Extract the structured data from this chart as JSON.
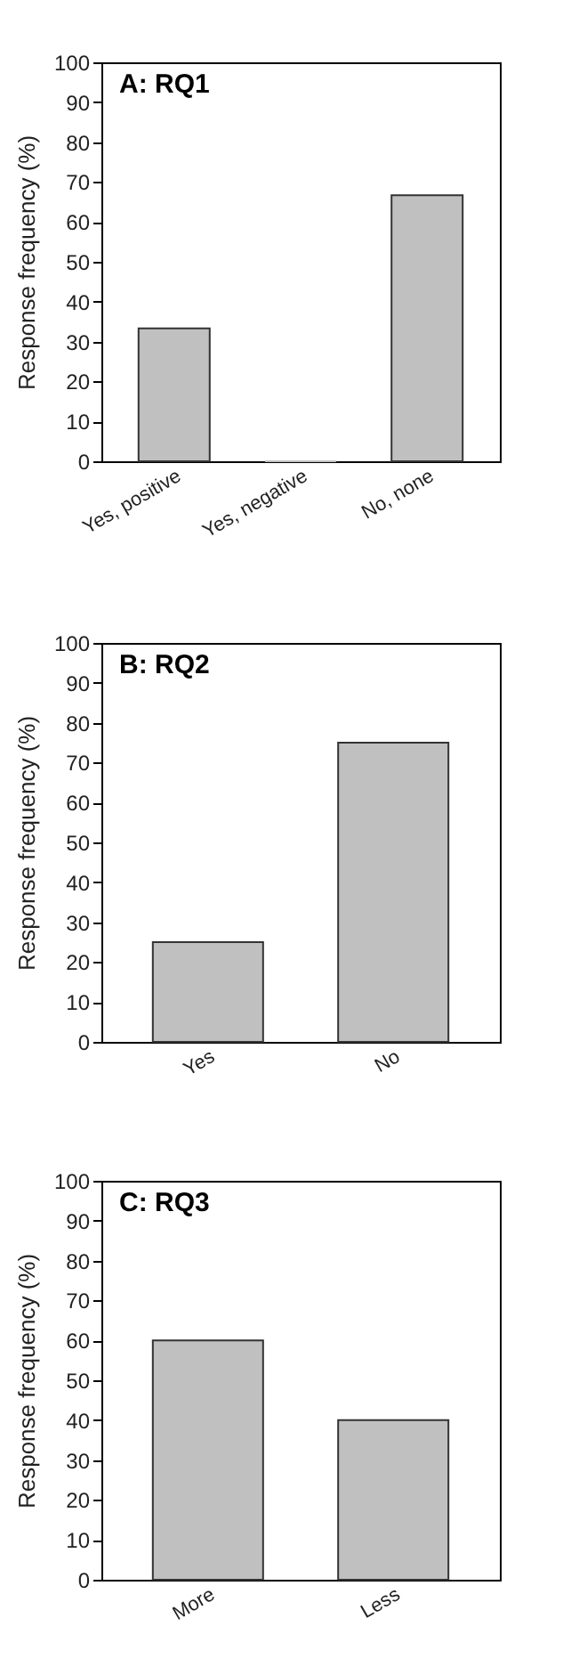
{
  "chart_data": [
    {
      "type": "bar",
      "title": "A: RQ1",
      "ylabel": "Response frequency (%)",
      "categories": [
        "Yes, positive",
        "Yes, negative",
        "No, none"
      ],
      "values": [
        33.3,
        0,
        66.7
      ],
      "color": "#c0c0c0",
      "ylim": [
        0,
        100
      ],
      "yticks": [
        0,
        10,
        20,
        30,
        40,
        50,
        60,
        70,
        80,
        90,
        100
      ]
    },
    {
      "type": "bar",
      "title": "B: RQ2",
      "ylabel": "Response frequency (%)",
      "categories": [
        "Yes",
        "No"
      ],
      "values": [
        25,
        75
      ],
      "color": "#c0c0c0",
      "ylim": [
        0,
        100
      ],
      "yticks": [
        0,
        10,
        20,
        30,
        40,
        50,
        60,
        70,
        80,
        90,
        100
      ]
    },
    {
      "type": "bar",
      "title": "C: RQ3",
      "ylabel": "Response frequency (%)",
      "categories": [
        "More",
        "Less"
      ],
      "values": [
        60,
        40
      ],
      "color": "#c0c0c0",
      "ylim": [
        0,
        100
      ],
      "yticks": [
        0,
        10,
        20,
        30,
        40,
        50,
        60,
        70,
        80,
        90,
        100
      ]
    }
  ]
}
